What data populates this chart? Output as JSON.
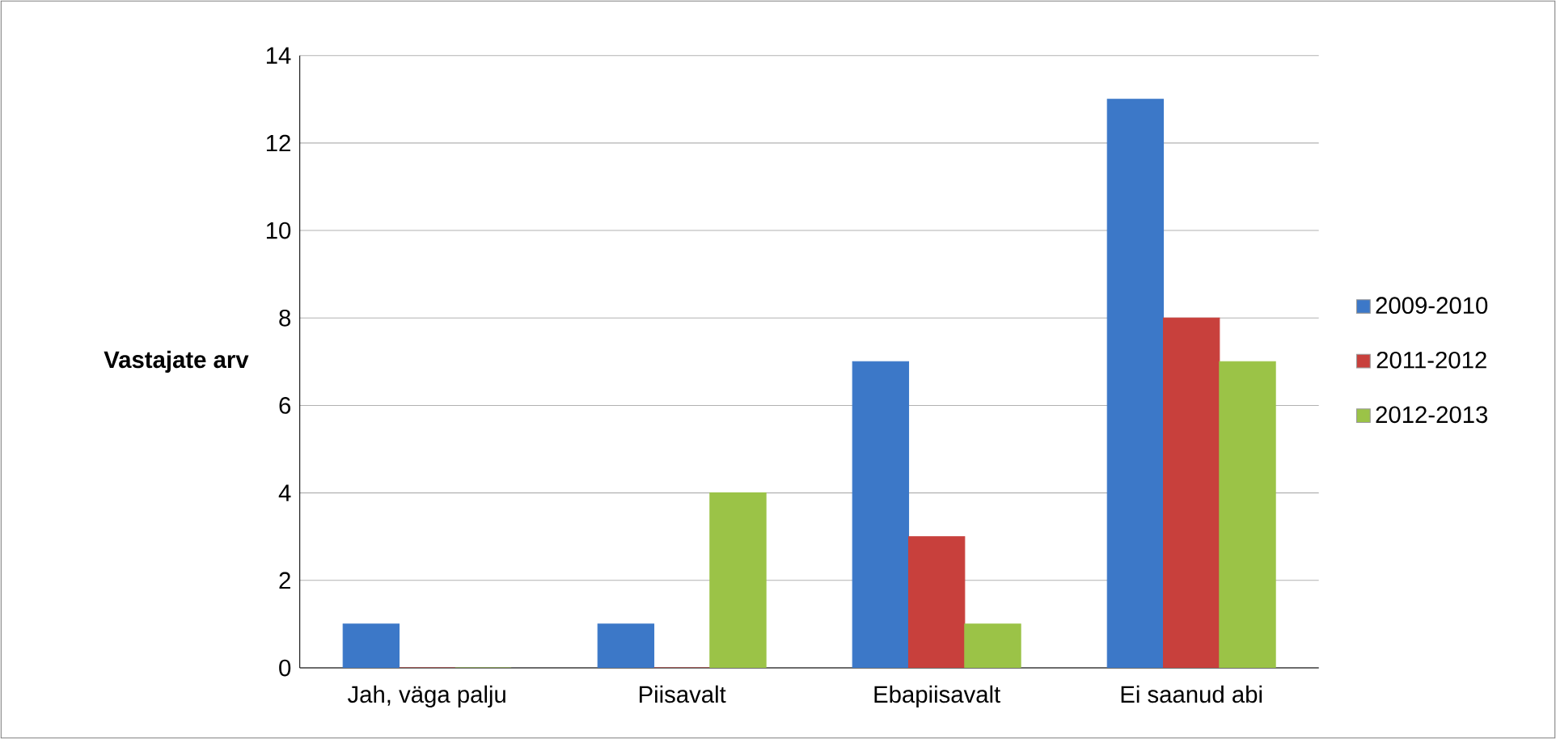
{
  "chart_data": {
    "type": "bar",
    "ylabel": "Vastajate arv",
    "categories": [
      "Jah, väga palju",
      "Piisavalt",
      "Ebapiisavalt",
      "Ei saanud abi"
    ],
    "series": [
      {
        "name": "2009-2010",
        "color": "#3c78c8",
        "values": [
          1,
          1,
          7,
          13
        ]
      },
      {
        "name": "2011-2012",
        "color": "#c8403c",
        "values": [
          0,
          0,
          3,
          8
        ]
      },
      {
        "name": "2012-2013",
        "color": "#9bc347",
        "values": [
          0,
          4,
          1,
          7
        ]
      }
    ],
    "ylim": [
      0,
      14
    ],
    "yticks": [
      0,
      2,
      4,
      6,
      8,
      10,
      12,
      14
    ],
    "grid": "y",
    "legend": "right"
  }
}
